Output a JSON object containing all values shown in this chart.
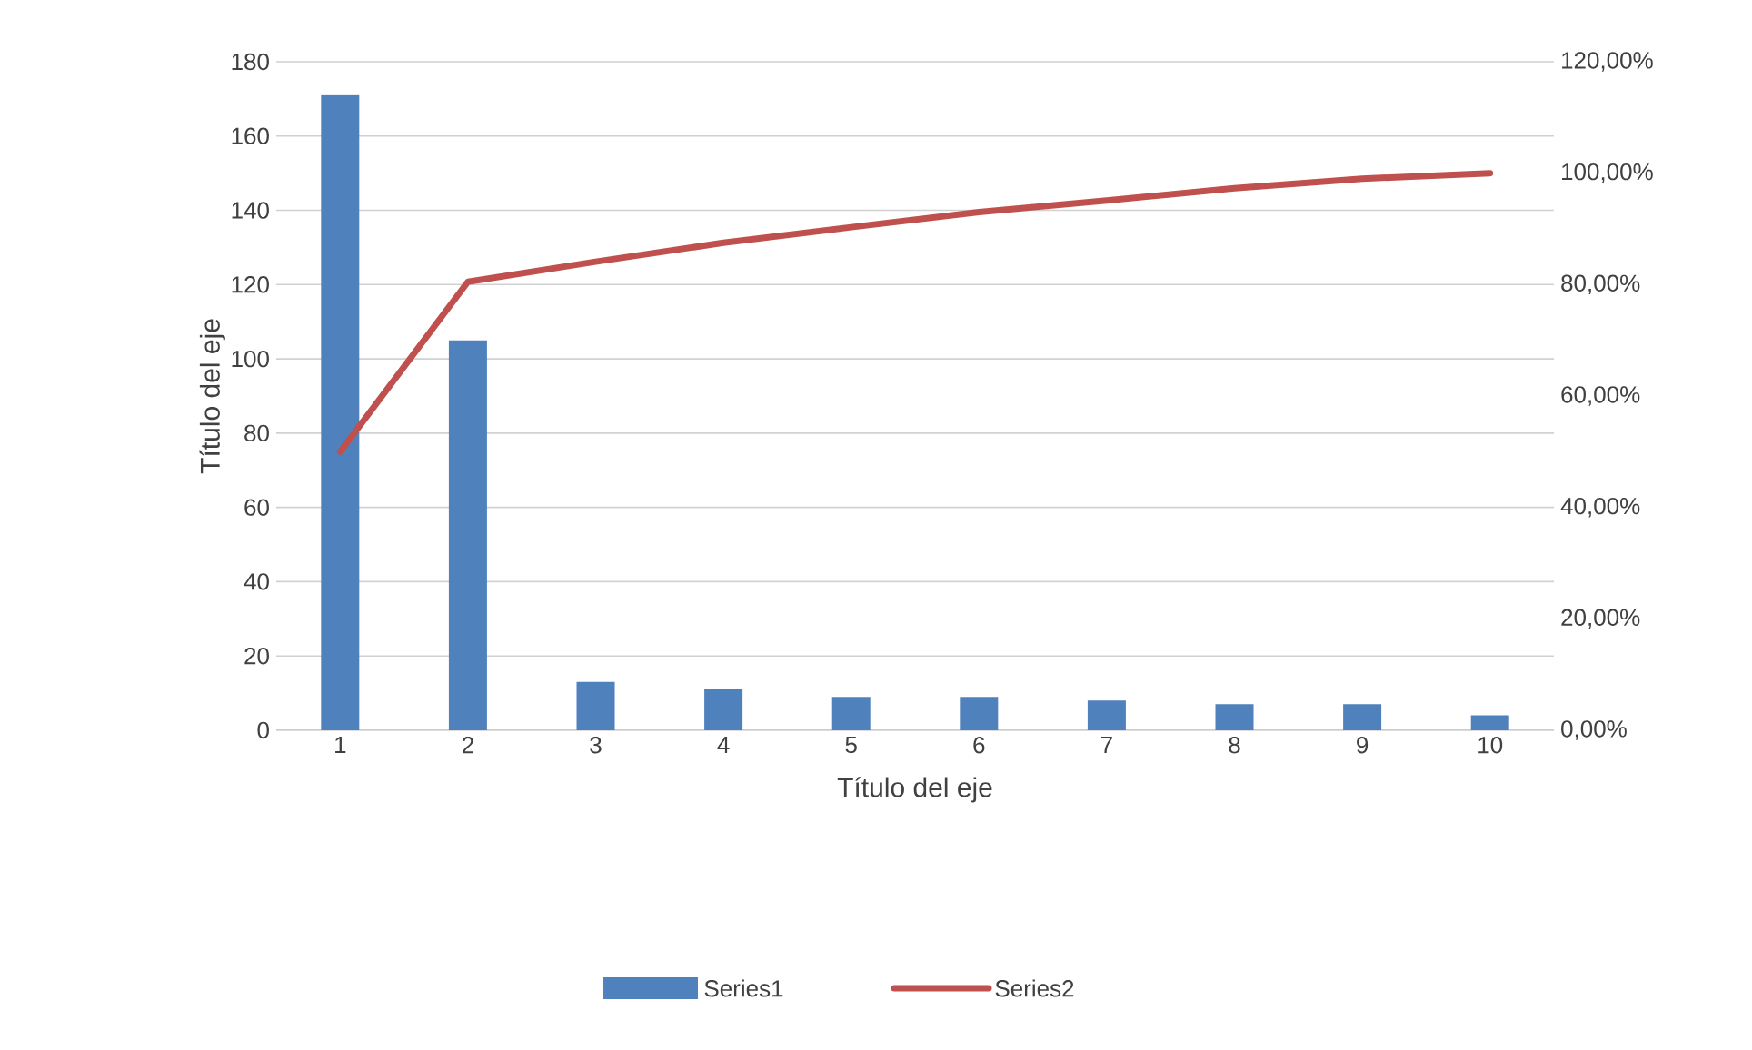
{
  "chart_data": {
    "type": "bar",
    "xlabel": "Título del eje",
    "ylabel": "Título del eje",
    "categories": [
      "1",
      "2",
      "3",
      "4",
      "5",
      "6",
      "7",
      "8",
      "9",
      "10"
    ],
    "series": [
      {
        "name": "Series1",
        "color": "#4f81bd",
        "values": [
          171,
          105,
          13,
          11,
          9,
          9,
          8,
          7,
          7,
          4
        ]
      },
      {
        "name": "Series2",
        "type": "line",
        "axis": "y2",
        "color": "#c0504d",
        "marker": "none",
        "values": [
          50,
          80.5,
          84.1,
          87.5,
          90.3,
          93.0,
          95.1,
          97.3,
          99.0,
          100.0
        ]
      }
    ],
    "ylim": [
      0,
      180
    ],
    "yticks": [
      0,
      20,
      40,
      60,
      80,
      100,
      120,
      140,
      160,
      180
    ],
    "y2lim": [
      0,
      120
    ],
    "y2ticks": [
      {
        "value": 0,
        "label": "0,00%"
      },
      {
        "value": 20,
        "label": "20,00%"
      },
      {
        "value": 40,
        "label": "40,00%"
      },
      {
        "value": 60,
        "label": "60,00%"
      },
      {
        "value": 80,
        "label": "80,00%"
      },
      {
        "value": 100,
        "label": "100,00%"
      },
      {
        "value": 120,
        "label": "120,00%"
      }
    ],
    "grid": "y",
    "legend": "bottom"
  }
}
